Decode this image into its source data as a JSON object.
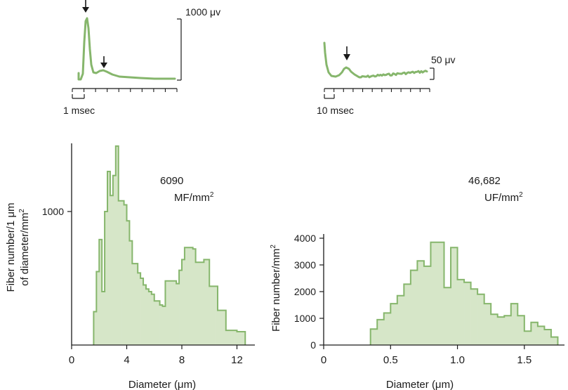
{
  "figure": {
    "panels": {
      "left_trace": {
        "scale_label": "1000 μv",
        "time_label": "1 msec"
      },
      "right_trace": {
        "scale_label": "50 μv",
        "time_label": "10 msec"
      }
    }
  },
  "colors": {
    "fill": "#d6e6c8",
    "stroke": "#86b66c",
    "axis": "#1a1a1a"
  },
  "chart_data": [
    {
      "type": "bar",
      "name": "myelinated-fiber-histogram",
      "title": "",
      "annotation_count": "6090",
      "annotation_unit": "MF/mm",
      "annotation_sup": "2",
      "xlabel_main": "Diameter (",
      "xlabel_unit": "μm",
      "xlabel_close": ")",
      "ylabel_line1": "Fiber number/1 μm",
      "ylabel_line2": "of diameter/mm",
      "ylabel_sup": "2",
      "xlim": [
        0,
        13.3
      ],
      "ylim": [
        0,
        1500
      ],
      "xticks": [
        0,
        4,
        8,
        12
      ],
      "xtick_labels": [
        "0",
        "4",
        "8",
        "12"
      ],
      "yticks": [
        1000
      ],
      "ytick_labels": [
        "1000"
      ],
      "bin_edges": [
        1.6,
        1.8,
        2.0,
        2.2,
        2.4,
        2.6,
        2.8,
        3.0,
        3.2,
        3.4,
        3.6,
        3.8,
        4.0,
        4.2,
        4.4,
        4.6,
        4.8,
        5.0,
        5.2,
        5.4,
        5.6,
        5.8,
        6.0,
        6.2,
        6.4,
        6.6,
        6.8,
        7.0,
        7.2,
        7.4,
        7.6,
        7.8,
        8.0,
        8.2,
        8.4,
        8.6,
        8.8,
        9.0,
        9.2,
        9.4,
        9.6,
        9.8,
        10.0,
        10.2,
        10.4,
        10.6,
        10.8,
        11.0,
        11.2,
        11.4,
        11.6,
        11.8,
        12.0,
        12.2,
        12.4,
        12.6
      ],
      "values": [
        250,
        550,
        790,
        400,
        1000,
        1300,
        1120,
        1270,
        1490,
        1080,
        1080,
        1050,
        930,
        780,
        610,
        610,
        540,
        500,
        450,
        420,
        400,
        380,
        330,
        330,
        300,
        290,
        480,
        480,
        480,
        480,
        460,
        560,
        640,
        730,
        730,
        730,
        720,
        620,
        620,
        620,
        640,
        640,
        440,
        440,
        440,
        260,
        260,
        260,
        110,
        110,
        110,
        110,
        100,
        100,
        100
      ]
    },
    {
      "type": "bar",
      "name": "unmyelinated-fiber-histogram",
      "title": "",
      "annotation_count": "46,682",
      "annotation_unit": "UF/mm",
      "annotation_sup": "2",
      "xlabel_main": "Diameter (",
      "xlabel_unit": "μm",
      "xlabel_close": ")",
      "ylabel_line1": "Fiber number/mm",
      "ylabel_sup": "2",
      "xlim": [
        0,
        1.8
      ],
      "ylim": [
        0,
        4000
      ],
      "xticks": [
        0,
        0.5,
        1.0,
        1.5
      ],
      "xtick_labels": [
        "0",
        "0.5",
        "1.0",
        "1.5"
      ],
      "yticks": [
        0,
        1000,
        2000,
        3000,
        4000
      ],
      "ytick_labels": [
        "0",
        "1000",
        "2000",
        "3000",
        "4000"
      ],
      "bin_edges": [
        0.35,
        0.4,
        0.45,
        0.5,
        0.55,
        0.6,
        0.65,
        0.7,
        0.75,
        0.8,
        0.85,
        0.9,
        0.95,
        1.0,
        1.05,
        1.1,
        1.15,
        1.2,
        1.25,
        1.3,
        1.35,
        1.4,
        1.45,
        1.5,
        1.55,
        1.6,
        1.65,
        1.7,
        1.75
      ],
      "values": [
        600,
        950,
        1200,
        1550,
        1850,
        2280,
        2800,
        3150,
        2950,
        3850,
        3850,
        2150,
        3650,
        2450,
        2350,
        2100,
        1900,
        1550,
        1150,
        1050,
        1100,
        1550,
        1100,
        520,
        850,
        700,
        580,
        300
      ]
    }
  ]
}
